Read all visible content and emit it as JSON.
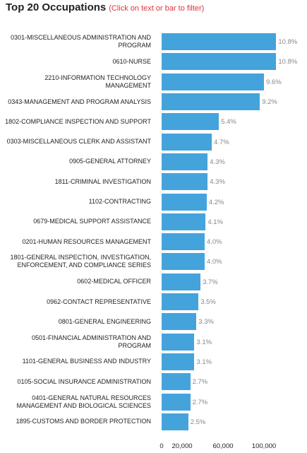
{
  "chart_data": {
    "type": "bar",
    "orientation": "horizontal",
    "title": "Top 20 Occupations",
    "subtitle": "(Click on text or bar to filter)",
    "categories": [
      "0301-MISCELLANEOUS ADMINISTRATION AND PROGRAM",
      "0610-NURSE",
      "2210-INFORMATION TECHNOLOGY MANAGEMENT",
      "0343-MANAGEMENT AND PROGRAM ANALYSIS",
      "1802-COMPLIANCE INSPECTION AND SUPPORT",
      "0303-MISCELLANEOUS CLERK AND ASSISTANT",
      "0905-GENERAL ATTORNEY",
      "1811-CRIMINAL INVESTIGATION",
      "1102-CONTRACTING",
      "0679-MEDICAL SUPPORT ASSISTANCE",
      "0201-HUMAN RESOURCES MANAGEMENT",
      "1801-GENERAL INSPECTION, INVESTIGATION, ENFORCEMENT, AND COMPLIANCE SERIES",
      "0602-MEDICAL OFFICER",
      "0962-CONTACT REPRESENTATIVE",
      "0801-GENERAL ENGINEERING",
      "0501-FINANCIAL ADMINISTRATION AND PROGRAM",
      "1101-GENERAL BUSINESS AND INDUSTRY",
      "0105-SOCIAL INSURANCE ADMINISTRATION",
      "0401-GENERAL NATURAL RESOURCES MANAGEMENT AND BIOLOGICAL SCIENCES",
      "1895-CUSTOMS AND BORDER PROTECTION"
    ],
    "values": [
      112000,
      112000,
      100000,
      96000,
      56000,
      49000,
      45000,
      45000,
      44000,
      43000,
      42000,
      42000,
      38000,
      36000,
      34000,
      32000,
      32000,
      28000,
      28000,
      26000
    ],
    "value_labels": [
      "10.8%",
      "10.8%",
      "9.6%",
      "9.2%",
      "5.4%",
      "4.7%",
      "4.3%",
      "4.3%",
      "4.2%",
      "4.1%",
      "4.0%",
      "4.0%",
      "3.7%",
      "3.5%",
      "3.3%",
      "3.1%",
      "3.1%",
      "2.7%",
      "2.7%",
      "2.5%"
    ],
    "color": "#45a3dc",
    "xlim": [
      0,
      120000
    ],
    "xticks": [
      0,
      {
        "value": 20000,
        "label": "20,000"
      },
      {
        "value": 60000,
        "label": "60,000"
      },
      {
        "value": 100000,
        "label": "100,000"
      }
    ]
  }
}
